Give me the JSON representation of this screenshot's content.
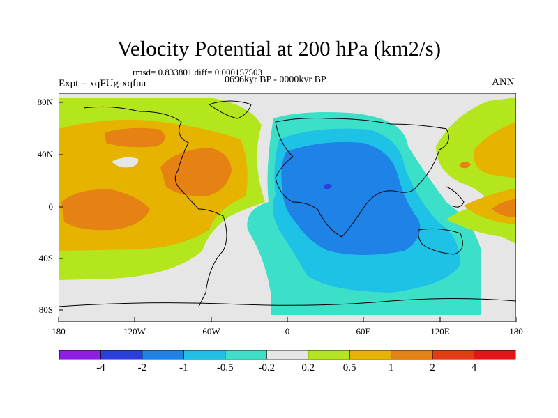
{
  "title": "Velocity Potential at 200 hPa (km2/s)",
  "stats": "rmsd= 0.833801 diff= 0.000157503",
  "period": "0696kyr BP - 0000kyr BP",
  "experiment": "Expt = xqFUg-xqfua",
  "season": "ANN",
  "lat_labels": [
    "80N",
    "40N",
    "0",
    "40S",
    "80S"
  ],
  "lon_labels": [
    "180",
    "120W",
    "60W",
    "0",
    "60E",
    "120E",
    "180"
  ],
  "colorbar": {
    "labels": [
      "-4",
      "-2",
      "-1",
      "-0.5",
      "-0.2",
      "0.2",
      "0.5",
      "1",
      "2",
      "4"
    ],
    "colors": [
      "#8c1ee6",
      "#2a3ee0",
      "#1e82e6",
      "#1ec2e6",
      "#3ce0c8",
      "#e6e6e6",
      "#b4e61e",
      "#e6b400",
      "#e68214",
      "#e63c14",
      "#e61414"
    ]
  }
}
